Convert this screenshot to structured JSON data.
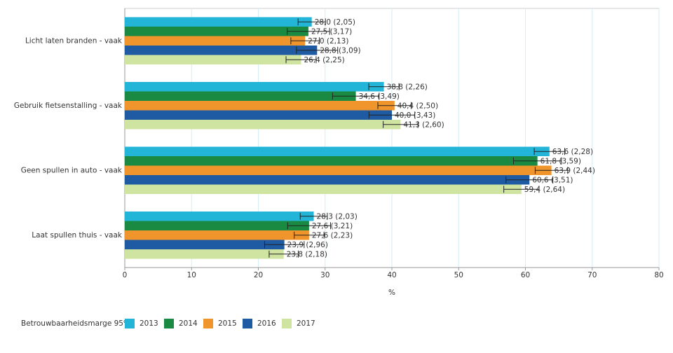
{
  "chart_data": {
    "type": "bar",
    "orientation": "horizontal",
    "categories": [
      "Licht laten branden - vaak",
      "Gebruik fietsenstalling - vaak",
      "Geen spullen in auto - vaak",
      "Laat spullen thuis - vaak"
    ],
    "series": [
      {
        "name": "2013",
        "color": "#22b5d8",
        "values": [
          28.0,
          38.8,
          63.6,
          28.3
        ],
        "errors": [
          2.05,
          2.26,
          2.28,
          2.03
        ],
        "value_labels": [
          "28,0 (2,05)",
          "38,8 (2,26)",
          "63,6 (2,28)",
          "28,3 (2,03)"
        ]
      },
      {
        "name": "2014",
        "color": "#1a8a42",
        "values": [
          27.5,
          34.6,
          61.8,
          27.6
        ],
        "errors": [
          3.17,
          3.49,
          3.59,
          3.21
        ],
        "value_labels": [
          "27,5 (3,17)",
          "34,6 (3,49)",
          "61,8 (3,59)",
          "27,6 (3,21)"
        ]
      },
      {
        "name": "2015",
        "color": "#f0952b",
        "values": [
          27.0,
          40.4,
          63.9,
          27.6
        ],
        "errors": [
          2.13,
          2.5,
          2.44,
          2.23
        ],
        "value_labels": [
          "27,0 (2,13)",
          "40,4 (2,50)",
          "63,9 (2,44)",
          "27,6 (2,23)"
        ]
      },
      {
        "name": "2016",
        "color": "#1f5ba3",
        "values": [
          28.8,
          40.0,
          60.6,
          23.9
        ],
        "errors": [
          3.09,
          3.43,
          3.51,
          2.96
        ],
        "value_labels": [
          "28,8 (3,09)",
          "40,0 (3,43)",
          "60,6 (3,51)",
          "23,9 (2,96)"
        ]
      },
      {
        "name": "2017",
        "color": "#d0e4a2",
        "values": [
          26.4,
          41.3,
          59.4,
          23.8
        ],
        "errors": [
          2.25,
          2.6,
          2.64,
          2.18
        ],
        "value_labels": [
          "26,4 (2,25)",
          "41,3 (2,60)",
          "59,4 (2,64)",
          "23,8 (2,18)"
        ]
      }
    ],
    "xlabel": "%",
    "legend_title": "Betrouwbaarheidsmarge 95%",
    "xlim": [
      0,
      80
    ],
    "xticks": [
      0,
      10,
      20,
      30,
      40,
      50,
      60,
      70,
      80
    ],
    "grid": true,
    "legend": "bottom-left"
  }
}
